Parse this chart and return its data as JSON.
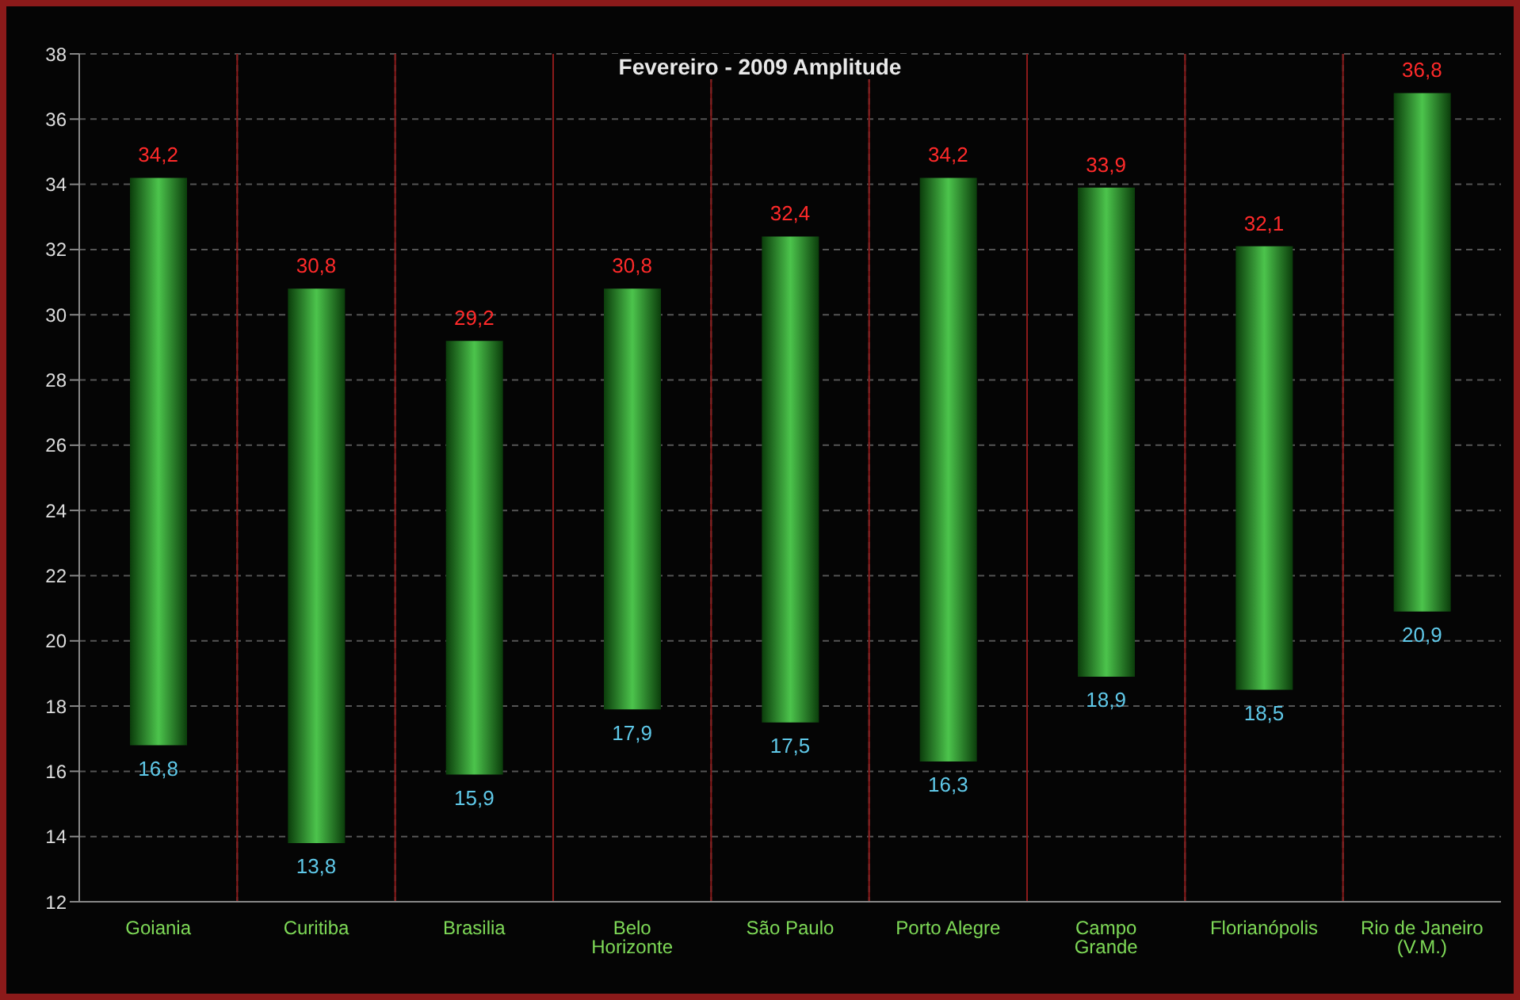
{
  "chart_data": {
    "type": "bar",
    "title": "Fevereiro - 2009 Amplitude",
    "categories": [
      "Goiania",
      "Curitiba",
      "Brasilia",
      "Belo Horizonte",
      "São Paulo",
      "Porto Alegre",
      "Campo Grande",
      "Florianópolis",
      "Rio de Janeiro (V.M.)"
    ],
    "base": [
      16.8,
      13.8,
      15.9,
      17.9,
      17.5,
      16.3,
      18.9,
      18.5,
      20.9
    ],
    "values": [
      17.4,
      17,
      13.3,
      12.9,
      14.9,
      17.9,
      15,
      13.6,
      15.9
    ],
    "color": "#4cc44c",
    "ylim": [
      12,
      38
    ],
    "yticks": [
      12,
      14,
      16,
      18,
      20,
      22,
      24,
      26,
      28,
      30,
      32,
      34,
      36,
      38
    ],
    "grid": true,
    "annotations": [
      {
        "text": "34,2",
        "x": "Goiania",
        "y": 34.2
      },
      {
        "text": "16,8",
        "x": "Goiania",
        "y": 16.8
      },
      {
        "text": "30,8",
        "x": "Curitiba",
        "y": 30.8
      },
      {
        "text": "13,8",
        "x": "Curitiba",
        "y": 13.8
      },
      {
        "text": "29,2",
        "x": "Brasilia",
        "y": 29.2
      },
      {
        "text": "15,9",
        "x": "Brasilia",
        "y": 15.9
      },
      {
        "text": "30,8",
        "x": "Belo Horizonte",
        "y": 30.8
      },
      {
        "text": "17,9",
        "x": "Belo Horizonte",
        "y": 17.9
      },
      {
        "text": "32,4",
        "x": "São Paulo",
        "y": 32.4
      },
      {
        "text": "17,5",
        "x": "São Paulo",
        "y": 17.5
      },
      {
        "text": "34,2",
        "x": "Porto Alegre",
        "y": 34.2
      },
      {
        "text": "16,3",
        "x": "Porto Alegre",
        "y": 16.3
      },
      {
        "text": "33,9",
        "x": "Campo Grande",
        "y": 33.9
      },
      {
        "text": "18,9",
        "x": "Campo Grande",
        "y": 18.9
      },
      {
        "text": "32,1",
        "x": "Florianópolis",
        "y": 32.1
      },
      {
        "text": "18,5",
        "x": "Florianópolis",
        "y": 18.5
      },
      {
        "text": "36,8",
        "x": "Rio de Janeiro (V.M.)",
        "y": 36.8
      },
      {
        "text": "20,9",
        "x": "Rio de Janeiro (V.M.)",
        "y": 20.9
      }
    ]
  }
}
